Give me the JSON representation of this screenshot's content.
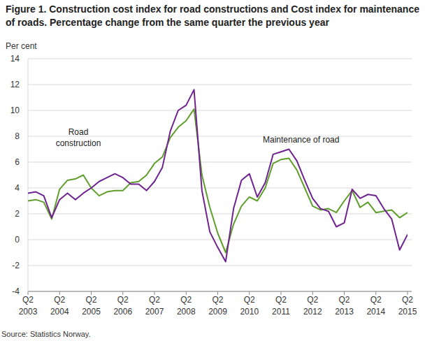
{
  "chart_data": {
    "type": "line",
    "title": "Figure 1. Construction cost index for road constructions and Cost index for maintenance of roads. Percentage change from the same quarter the previous year",
    "y_label": "Per cent",
    "source": "Source: Statistics Norway.",
    "categories": [
      "Q2 2003",
      null,
      null,
      null,
      "Q2 2004",
      null,
      null,
      null,
      "Q2 2005",
      null,
      null,
      null,
      "Q2 2006",
      null,
      null,
      null,
      "Q2 2007",
      null,
      null,
      null,
      "Q2 2008",
      null,
      null,
      null,
      "Q2 2009",
      null,
      null,
      null,
      "Q2 2010",
      null,
      null,
      null,
      "Q2 2011",
      null,
      null,
      null,
      "Q2 2012",
      null,
      null,
      null,
      "Q2 2013",
      null,
      null,
      null,
      "Q2 2014",
      null,
      null,
      null,
      "Q2 2015"
    ],
    "series": [
      {
        "name": "Road construction",
        "color": "#5f9e2a",
        "values": [
          3.0,
          3.1,
          2.9,
          1.6,
          3.9,
          4.6,
          4.7,
          5.0,
          4.0,
          3.4,
          3.7,
          3.8,
          3.8,
          4.4,
          4.5,
          5.0,
          5.9,
          6.4,
          7.9,
          8.7,
          9.2,
          10.1,
          5.0,
          2.5,
          0.5,
          -1.0,
          1.2,
          2.6,
          3.3,
          3.0,
          4.0,
          5.9,
          6.2,
          6.3,
          5.4,
          4.0,
          2.6,
          2.3,
          2.4,
          2.1,
          3.0,
          3.8,
          2.5,
          2.9,
          2.1,
          2.2,
          2.3,
          1.7,
          2.1
        ]
      },
      {
        "name": "Maintenance of road",
        "color": "#6f2390",
        "values": [
          3.6,
          3.7,
          3.4,
          1.7,
          3.1,
          3.6,
          3.1,
          3.6,
          4.0,
          4.5,
          4.8,
          5.1,
          4.8,
          4.3,
          4.3,
          3.8,
          4.5,
          5.6,
          8.4,
          10.0,
          10.4,
          11.6,
          3.8,
          0.6,
          -0.6,
          -1.7,
          2.4,
          4.6,
          5.1,
          3.3,
          4.4,
          6.6,
          6.8,
          7.0,
          6.1,
          4.6,
          3.2,
          2.4,
          2.2,
          1.0,
          1.3,
          3.9,
          3.2,
          3.5,
          3.4,
          2.4,
          1.6,
          -0.8,
          0.4
        ]
      }
    ],
    "ylim": [
      -4,
      14
    ],
    "yticks": [
      -4,
      -2,
      0,
      2,
      4,
      6,
      8,
      10,
      12,
      14
    ],
    "grid": true
  }
}
